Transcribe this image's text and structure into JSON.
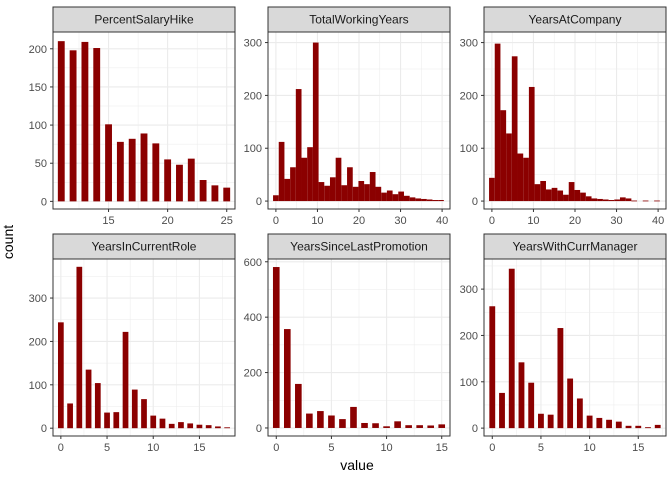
{
  "colors": {
    "bar": "#8b0000",
    "strip_fill": "#d9d9d9",
    "strip_border": "#333333",
    "panel_border": "#333333",
    "grid": "#ebebeb"
  },
  "chart_data": {
    "type": "bar",
    "xlabel": "value",
    "ylabel": "count",
    "grid": true,
    "panels": [
      {
        "name": "PercentSalaryHike",
        "x_ticks": [
          15,
          20,
          25
        ],
        "y_ticks": [
          0,
          50,
          100,
          150,
          200
        ],
        "xlim": [
          10.3,
          25.7
        ],
        "ylim": [
          -10,
          222
        ],
        "bar_width": 0.58,
        "bars": [
          {
            "x": 11,
            "y": 210
          },
          {
            "x": 12,
            "y": 198
          },
          {
            "x": 13,
            "y": 209
          },
          {
            "x": 14,
            "y": 201
          },
          {
            "x": 15,
            "y": 101
          },
          {
            "x": 16,
            "y": 78
          },
          {
            "x": 17,
            "y": 82
          },
          {
            "x": 18,
            "y": 89
          },
          {
            "x": 19,
            "y": 76
          },
          {
            "x": 20,
            "y": 55
          },
          {
            "x": 21,
            "y": 48
          },
          {
            "x": 22,
            "y": 56
          },
          {
            "x": 23,
            "y": 28
          },
          {
            "x": 24,
            "y": 21
          },
          {
            "x": 25,
            "y": 18
          }
        ]
      },
      {
        "name": "TotalWorkingYears",
        "x_ticks": [
          0,
          10,
          20,
          30,
          40
        ],
        "y_ticks": [
          0,
          100,
          200,
          300
        ],
        "xlim": [
          -1.9,
          41.9
        ],
        "ylim": [
          -15,
          320
        ],
        "bar_width": 1.37,
        "bars": [
          {
            "x": 0,
            "y": 11
          },
          {
            "x": 1.37,
            "y": 112
          },
          {
            "x": 2.74,
            "y": 42
          },
          {
            "x": 4.11,
            "y": 64
          },
          {
            "x": 5.48,
            "y": 212
          },
          {
            "x": 6.85,
            "y": 82
          },
          {
            "x": 8.22,
            "y": 102
          },
          {
            "x": 9.59,
            "y": 300
          },
          {
            "x": 10.96,
            "y": 36
          },
          {
            "x": 12.33,
            "y": 29
          },
          {
            "x": 13.7,
            "y": 45
          },
          {
            "x": 15.07,
            "y": 82
          },
          {
            "x": 16.44,
            "y": 30
          },
          {
            "x": 17.81,
            "y": 64
          },
          {
            "x": 19.18,
            "y": 27
          },
          {
            "x": 20.55,
            "y": 38
          },
          {
            "x": 21.92,
            "y": 32
          },
          {
            "x": 23.29,
            "y": 55
          },
          {
            "x": 24.66,
            "y": 27
          },
          {
            "x": 26.03,
            "y": 16
          },
          {
            "x": 27.4,
            "y": 20
          },
          {
            "x": 28.77,
            "y": 13
          },
          {
            "x": 30.14,
            "y": 18
          },
          {
            "x": 31.51,
            "y": 10
          },
          {
            "x": 32.88,
            "y": 7
          },
          {
            "x": 34.25,
            "y": 5
          },
          {
            "x": 35.62,
            "y": 4
          },
          {
            "x": 36.99,
            "y": 3
          },
          {
            "x": 38.36,
            "y": 2
          },
          {
            "x": 39.73,
            "y": 2
          }
        ]
      },
      {
        "name": "YearsAtCompany",
        "x_ticks": [
          0,
          10,
          20,
          30,
          40
        ],
        "y_ticks": [
          0,
          100,
          200,
          300
        ],
        "xlim": [
          -1.9,
          41.9
        ],
        "ylim": [
          -15,
          320
        ],
        "bar_width": 1.37,
        "bars": [
          {
            "x": 0,
            "y": 44
          },
          {
            "x": 1.37,
            "y": 298
          },
          {
            "x": 2.74,
            "y": 172
          },
          {
            "x": 4.11,
            "y": 128
          },
          {
            "x": 5.48,
            "y": 274
          },
          {
            "x": 6.85,
            "y": 90
          },
          {
            "x": 8.22,
            "y": 82
          },
          {
            "x": 9.59,
            "y": 216
          },
          {
            "x": 10.96,
            "y": 32
          },
          {
            "x": 12.33,
            "y": 38
          },
          {
            "x": 13.7,
            "y": 22
          },
          {
            "x": 15.07,
            "y": 25
          },
          {
            "x": 16.44,
            "y": 20
          },
          {
            "x": 17.81,
            "y": 12
          },
          {
            "x": 19.18,
            "y": 36
          },
          {
            "x": 20.55,
            "y": 21
          },
          {
            "x": 21.92,
            "y": 16
          },
          {
            "x": 23.29,
            "y": 9
          },
          {
            "x": 24.66,
            "y": 5
          },
          {
            "x": 26.03,
            "y": 4
          },
          {
            "x": 27.4,
            "y": 3
          },
          {
            "x": 28.77,
            "y": 2
          },
          {
            "x": 30.14,
            "y": 3
          },
          {
            "x": 31.51,
            "y": 7
          },
          {
            "x": 32.88,
            "y": 5
          },
          {
            "x": 34.25,
            "y": 1
          },
          {
            "x": 36.99,
            "y": 1
          },
          {
            "x": 39.73,
            "y": 1
          }
        ]
      },
      {
        "name": "YearsInCurrentRole",
        "x_ticks": [
          0,
          5,
          10,
          15
        ],
        "y_ticks": [
          0,
          100,
          200,
          300
        ],
        "xlim": [
          -0.85,
          18.85
        ],
        "ylim": [
          -18,
          390
        ],
        "bar_width": 0.62,
        "bars": [
          {
            "x": 0,
            "y": 244
          },
          {
            "x": 1,
            "y": 57
          },
          {
            "x": 2,
            "y": 372
          },
          {
            "x": 3,
            "y": 135
          },
          {
            "x": 4,
            "y": 104
          },
          {
            "x": 5,
            "y": 36
          },
          {
            "x": 6,
            "y": 37
          },
          {
            "x": 7,
            "y": 222
          },
          {
            "x": 8,
            "y": 89
          },
          {
            "x": 9,
            "y": 67
          },
          {
            "x": 10,
            "y": 29
          },
          {
            "x": 11,
            "y": 22
          },
          {
            "x": 12,
            "y": 10
          },
          {
            "x": 13,
            "y": 14
          },
          {
            "x": 14,
            "y": 11
          },
          {
            "x": 15,
            "y": 8
          },
          {
            "x": 16,
            "y": 7
          },
          {
            "x": 17,
            "y": 4
          },
          {
            "x": 18,
            "y": 2
          }
        ]
      },
      {
        "name": "YearsSinceLastPromotion",
        "x_ticks": [
          0,
          5,
          10,
          15
        ],
        "y_ticks": [
          0,
          200,
          400,
          600
        ],
        "xlim": [
          -0.75,
          15.75
        ],
        "ylim": [
          -29,
          610
        ],
        "bar_width": 0.6,
        "bars": [
          {
            "x": 0,
            "y": 581
          },
          {
            "x": 1,
            "y": 357
          },
          {
            "x": 2,
            "y": 159
          },
          {
            "x": 3,
            "y": 52
          },
          {
            "x": 4,
            "y": 61
          },
          {
            "x": 5,
            "y": 45
          },
          {
            "x": 6,
            "y": 32
          },
          {
            "x": 7,
            "y": 76
          },
          {
            "x": 8,
            "y": 18
          },
          {
            "x": 9,
            "y": 17
          },
          {
            "x": 10,
            "y": 6
          },
          {
            "x": 11,
            "y": 24
          },
          {
            "x": 12,
            "y": 10
          },
          {
            "x": 13,
            "y": 10
          },
          {
            "x": 14,
            "y": 9
          },
          {
            "x": 15,
            "y": 13
          }
        ]
      },
      {
        "name": "YearsWithCurrManager",
        "x_ticks": [
          0,
          5,
          10,
          15
        ],
        "y_ticks": [
          0,
          100,
          200,
          300
        ],
        "xlim": [
          -0.85,
          17.85
        ],
        "ylim": [
          -17,
          365
        ],
        "bar_width": 0.6,
        "bars": [
          {
            "x": 0,
            "y": 263
          },
          {
            "x": 1,
            "y": 76
          },
          {
            "x": 2,
            "y": 344
          },
          {
            "x": 3,
            "y": 142
          },
          {
            "x": 4,
            "y": 98
          },
          {
            "x": 5,
            "y": 31
          },
          {
            "x": 6,
            "y": 29
          },
          {
            "x": 7,
            "y": 216
          },
          {
            "x": 8,
            "y": 107
          },
          {
            "x": 9,
            "y": 64
          },
          {
            "x": 10,
            "y": 27
          },
          {
            "x": 11,
            "y": 22
          },
          {
            "x": 12,
            "y": 18
          },
          {
            "x": 13,
            "y": 14
          },
          {
            "x": 14,
            "y": 5
          },
          {
            "x": 15,
            "y": 5
          },
          {
            "x": 16,
            "y": 2
          },
          {
            "x": 17,
            "y": 7
          }
        ]
      }
    ]
  }
}
